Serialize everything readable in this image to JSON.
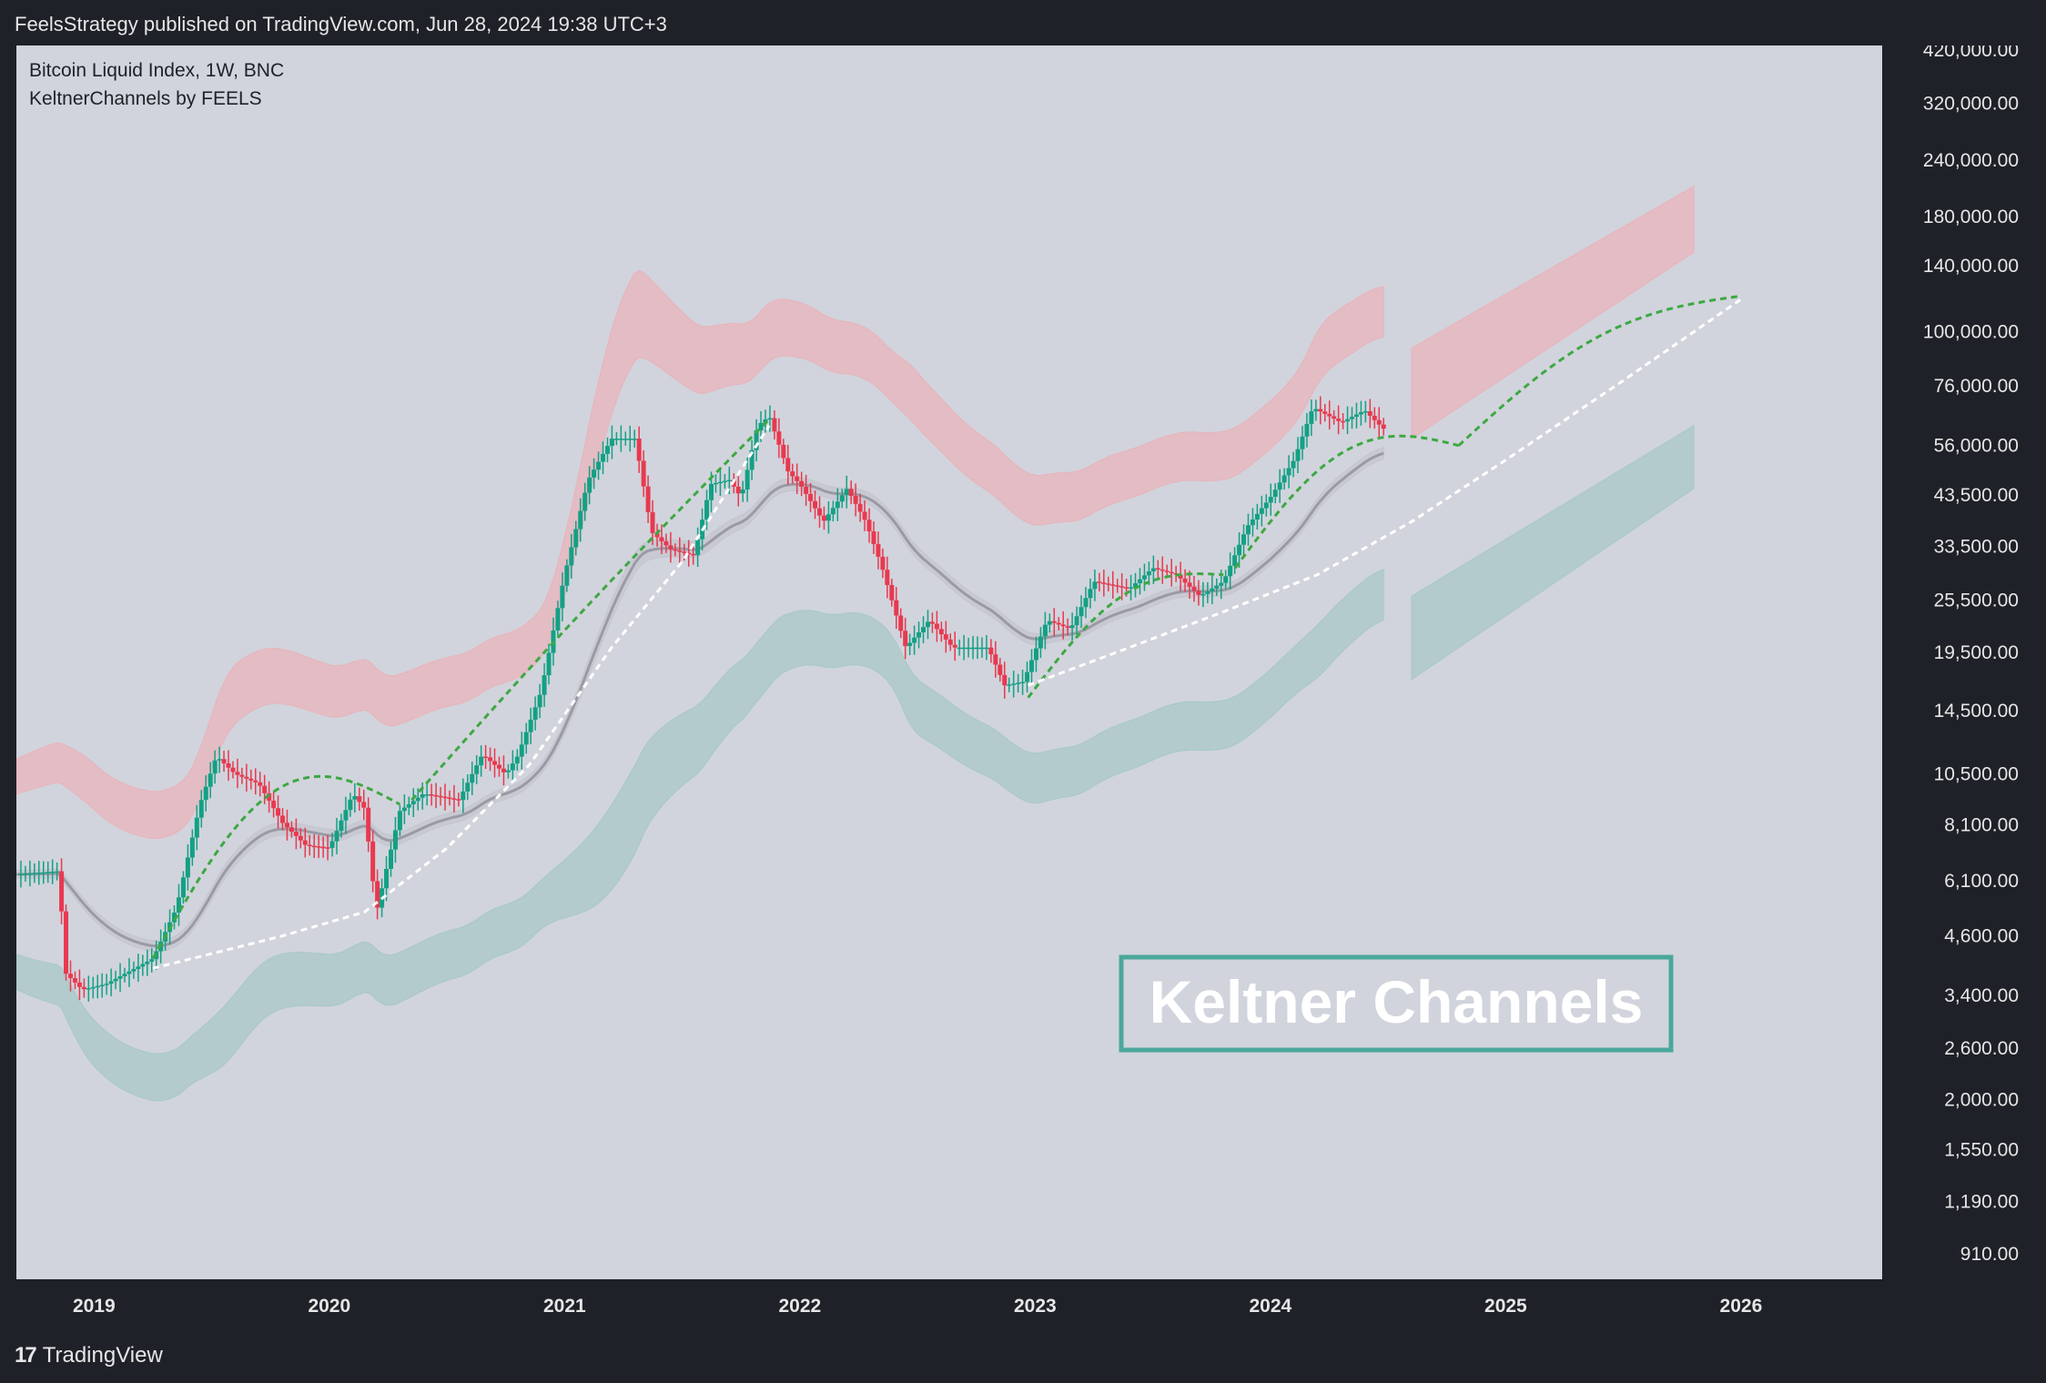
{
  "header": {
    "publisher_line": "FeelsStrategy published on TradingView.com, Jun 28, 2024 19:38 UTC+3"
  },
  "legend": {
    "symbol_line": "Bitcoin Liquid Index, 1W, BNC",
    "indicator_line": "KeltnerChannels by FEELS"
  },
  "footer": {
    "brand": "TradingView",
    "brand_icon": "tradingview-logo-icon"
  },
  "colors": {
    "background": "#d1d4dc",
    "frame": "#1f2128",
    "up": "#14a085",
    "down": "#e8394f",
    "upper_band": "#e8b4bc",
    "lower_band": "#a8c8c8",
    "midline": "#9a9aa4",
    "curve_green": "#3da843",
    "curve_white": "#ffffff",
    "label_border": "#4aa89a"
  },
  "chart_data": {
    "type": "candlestick",
    "y_scale": "log",
    "ylim": [
      800,
      430000
    ],
    "y_ticks": [
      "420,000.00",
      "320,000.00",
      "240,000.00",
      "180,000.00",
      "140,000.00",
      "100,000.00",
      "76,000.00",
      "56,000.00",
      "43,500.00",
      "33,500.00",
      "25,500.00",
      "19,500.00",
      "14,500.00",
      "10,500.00",
      "8,100.00",
      "6,100.00",
      "4,600.00",
      "3,400.00",
      "2,600.00",
      "2,000.00",
      "1,550.00",
      "1,190.00",
      "910.00"
    ],
    "y_tick_values": [
      420000,
      320000,
      240000,
      180000,
      140000,
      100000,
      76000,
      56000,
      43500,
      33500,
      25500,
      19500,
      14500,
      10500,
      8100,
      6100,
      4600,
      3400,
      2600,
      2000,
      1550,
      1190,
      910
    ],
    "x_ticks": [
      "2019",
      "2020",
      "2021",
      "2022",
      "2023",
      "2024",
      "2025",
      "2026"
    ],
    "x_tick_years": [
      2019,
      2020,
      2021,
      2022,
      2023,
      2024,
      2025,
      2026
    ],
    "xlim": [
      2018.67,
      2026.6
    ],
    "price_path": [
      [
        2018.67,
        6300
      ],
      [
        2018.85,
        6400
      ],
      [
        2018.88,
        3800
      ],
      [
        2018.95,
        3500
      ],
      [
        2019.05,
        3600
      ],
      [
        2019.25,
        4100
      ],
      [
        2019.35,
        5300
      ],
      [
        2019.45,
        9000
      ],
      [
        2019.52,
        11500
      ],
      [
        2019.6,
        10500
      ],
      [
        2019.7,
        10000
      ],
      [
        2019.8,
        8200
      ],
      [
        2019.9,
        7300
      ],
      [
        2020.0,
        7200
      ],
      [
        2020.1,
        9500
      ],
      [
        2020.15,
        8800
      ],
      [
        2020.2,
        5200
      ],
      [
        2020.3,
        8700
      ],
      [
        2020.4,
        9500
      ],
      [
        2020.55,
        9200
      ],
      [
        2020.65,
        11600
      ],
      [
        2020.75,
        10500
      ],
      [
        2020.8,
        11500
      ],
      [
        2020.9,
        16000
      ],
      [
        2021.0,
        29000
      ],
      [
        2021.1,
        47000
      ],
      [
        2021.2,
        58000
      ],
      [
        2021.3,
        58000
      ],
      [
        2021.37,
        36000
      ],
      [
        2021.45,
        33000
      ],
      [
        2021.55,
        32000
      ],
      [
        2021.62,
        46000
      ],
      [
        2021.7,
        47000
      ],
      [
        2021.75,
        43000
      ],
      [
        2021.82,
        62000
      ],
      [
        2021.87,
        65000
      ],
      [
        2021.95,
        49000
      ],
      [
        2022.0,
        46000
      ],
      [
        2022.1,
        38000
      ],
      [
        2022.2,
        45000
      ],
      [
        2022.28,
        38000
      ],
      [
        2022.35,
        30000
      ],
      [
        2022.45,
        20000
      ],
      [
        2022.55,
        23000
      ],
      [
        2022.65,
        20000
      ],
      [
        2022.8,
        20000
      ],
      [
        2022.87,
        16500
      ],
      [
        2022.95,
        16800
      ],
      [
        2023.05,
        23000
      ],
      [
        2023.15,
        22000
      ],
      [
        2023.25,
        28000
      ],
      [
        2023.4,
        27000
      ],
      [
        2023.5,
        30000
      ],
      [
        2023.6,
        29000
      ],
      [
        2023.7,
        26000
      ],
      [
        2023.8,
        28000
      ],
      [
        2023.9,
        37000
      ],
      [
        2024.0,
        43000
      ],
      [
        2024.1,
        52000
      ],
      [
        2024.18,
        68000
      ],
      [
        2024.3,
        63000
      ],
      [
        2024.4,
        67000
      ],
      [
        2024.48,
        61000
      ]
    ],
    "annotations": [
      {
        "type": "label",
        "text": "Keltner Channels"
      }
    ]
  }
}
